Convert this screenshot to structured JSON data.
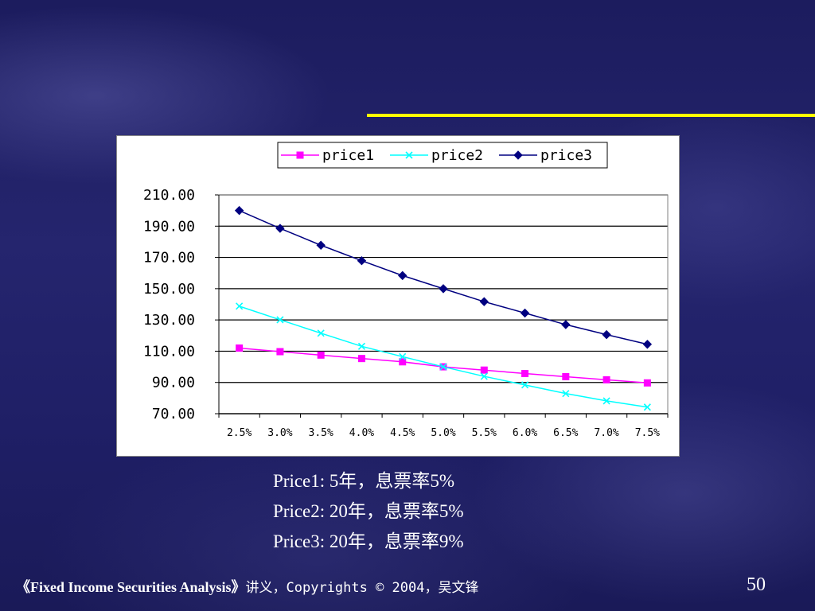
{
  "slide": {
    "notes": [
      "Price1: 5年，息票率5%",
      "Price2: 20年，息票率5%",
      "Price3: 20年，息票率9%"
    ],
    "footer_book": "《Fixed Income Securities Analysis》",
    "footer_rest": "讲义，Copyrights © 2004，吴文锋",
    "page_number": "50"
  },
  "chart_data": {
    "type": "line",
    "categories": [
      "2.5%",
      "3.0%",
      "3.5%",
      "4.0%",
      "4.5%",
      "5.0%",
      "5.5%",
      "6.0%",
      "6.5%",
      "7.0%",
      "7.5%"
    ],
    "y_tick_labels": [
      "210.00",
      "190.00",
      "170.00",
      "150.00",
      "130.00",
      "110.00",
      "90.00",
      "70.00"
    ],
    "ylim": [
      70,
      210
    ],
    "grid": true,
    "legend_position": "top",
    "series": [
      {
        "name": "price1",
        "color": "#ff00ff",
        "marker": "square",
        "values": [
          112.0,
          109.7,
          107.5,
          105.3,
          103.2,
          100.0,
          97.9,
          95.7,
          93.7,
          91.7,
          89.7
        ]
      },
      {
        "name": "price2",
        "color": "#00ffff",
        "marker": "x",
        "values": [
          138.8,
          130.1,
          121.5,
          113.1,
          106.5,
          100.0,
          93.9,
          88.4,
          82.9,
          78.2,
          74.2
        ]
      },
      {
        "name": "price3",
        "color": "#000080",
        "marker": "diamond",
        "values": [
          200.0,
          188.6,
          177.8,
          167.9,
          158.4,
          150.0,
          141.7,
          134.4,
          127.0,
          120.6,
          114.4
        ]
      }
    ]
  }
}
